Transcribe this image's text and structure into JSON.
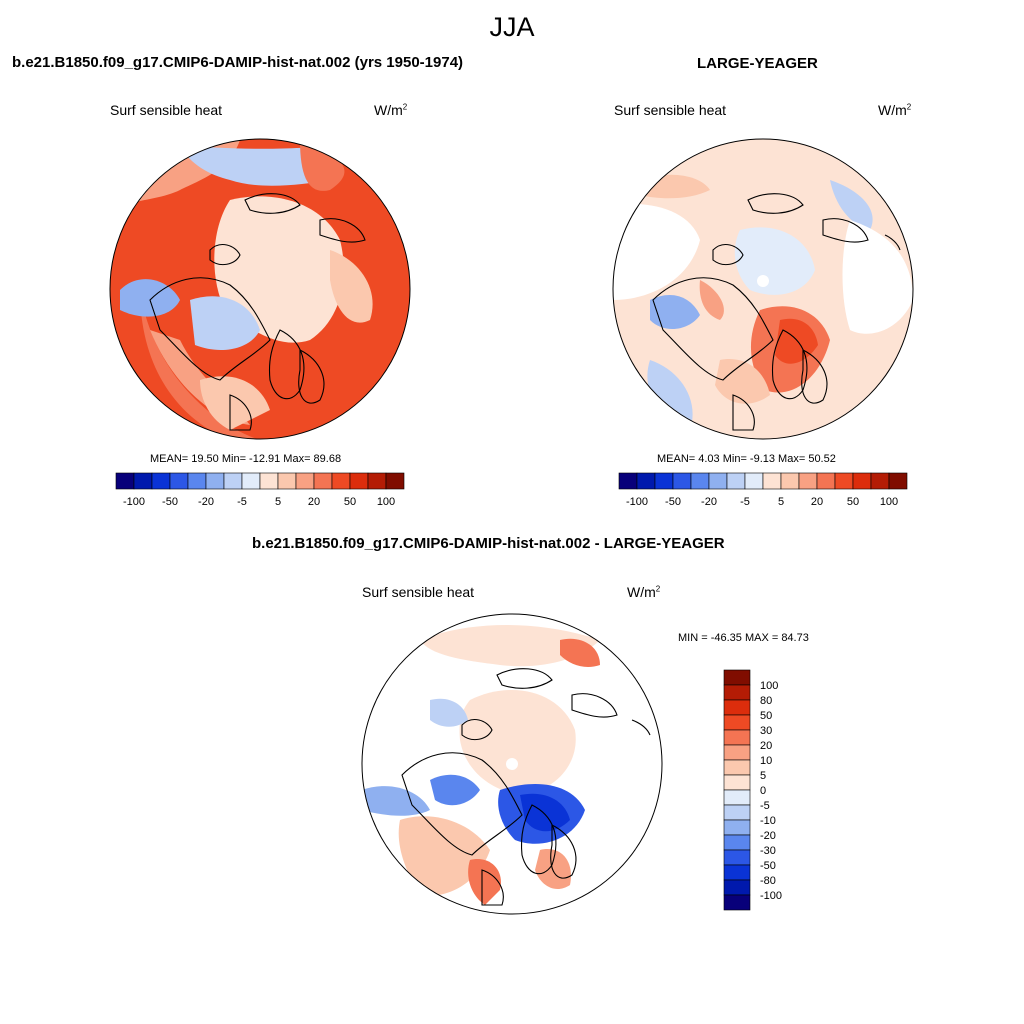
{
  "season": "JJA",
  "colors": {
    "levels": [
      "#08007a",
      "#0019ad",
      "#0a33d6",
      "#2c57e6",
      "#5a86ee",
      "#8fb0f0",
      "#bdd1f5",
      "#e2ecfa",
      "#fde3d4",
      "#fbc8ae",
      "#f8a183",
      "#f47453",
      "#ee4a24",
      "#dc2d0c",
      "#b41c05",
      "#800d00"
    ],
    "land_outline": "#000000"
  },
  "panels": [
    {
      "title": "b.e21.B1850.f09_g17.CMIP6-DAMIP-hist-nat.002 (yrs 1950-1974)",
      "var_label": "Surf sensible heat",
      "units_base": "W/m",
      "units_exp": "2",
      "stats": "MEAN=  19.50  Min= -12.91  Max=  89.68"
    },
    {
      "title": "LARGE-YEAGER",
      "var_label": "Surf sensible heat",
      "units_base": "W/m",
      "units_exp": "2",
      "stats": "MEAN=   4.03  Min=  -9.13  Max=  50.52"
    },
    {
      "title": "b.e21.B1850.f09_g17.CMIP6-DAMIP-hist-nat.002 - LARGE-YEAGER",
      "var_label": "Surf sensible heat",
      "units_base": "W/m",
      "units_exp": "2",
      "stats": "MIN = -46.35 MAX =  84.73"
    }
  ],
  "chart_data": [
    {
      "type": "heatmap",
      "title": "b.e21.B1850.f09_g17.CMIP6-DAMIP-hist-nat.002 (yrs 1950-1974)",
      "projection": "north-polar-stereographic",
      "variable": "Surf sensible heat",
      "units": "W/m2",
      "stats": {
        "mean": 19.5,
        "min": -12.91,
        "max": 89.68
      },
      "colorbar": {
        "orientation": "horizontal",
        "tick_labels": [
          "-100",
          "-50",
          "-20",
          "-5",
          "5",
          "20",
          "50",
          "100"
        ]
      }
    },
    {
      "type": "heatmap",
      "title": "LARGE-YEAGER",
      "projection": "north-polar-stereographic",
      "variable": "Surf sensible heat",
      "units": "W/m2",
      "stats": {
        "mean": 4.03,
        "min": -9.13,
        "max": 50.52
      },
      "colorbar": {
        "orientation": "horizontal",
        "tick_labels": [
          "-100",
          "-50",
          "-20",
          "-5",
          "5",
          "20",
          "50",
          "100"
        ]
      }
    },
    {
      "type": "heatmap",
      "title": "b.e21.B1850.f09_g17.CMIP6-DAMIP-hist-nat.002 - LARGE-YEAGER",
      "projection": "north-polar-stereographic",
      "variable": "Surf sensible heat",
      "units": "W/m2",
      "stats": {
        "min": -46.35,
        "max": 84.73
      },
      "colorbar": {
        "orientation": "vertical",
        "tick_labels": [
          "100",
          "80",
          "50",
          "30",
          "20",
          "10",
          "5",
          "0",
          "-5",
          "-10",
          "-20",
          "-30",
          "-50",
          "-80",
          "-100"
        ]
      }
    }
  ]
}
